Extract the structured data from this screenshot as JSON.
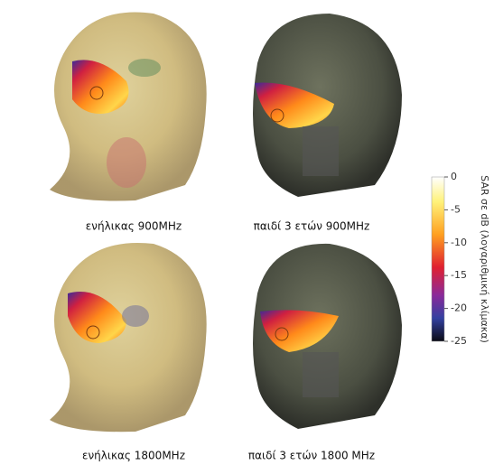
{
  "panels": [
    {
      "caption": "ενήλικας 900MHz"
    },
    {
      "caption": "παιδί 3 ετών 900MHz"
    },
    {
      "caption": "ενήλικας 1800MHz"
    },
    {
      "caption": "παιδί 3 ετών 1800 MHz"
    }
  ],
  "colorbar": {
    "label": "SAR σε dB (λογαριθμική κλίμακα)",
    "lim": [
      -25,
      0
    ],
    "ticks": [
      0,
      -5,
      -10,
      -15,
      -20,
      -25
    ]
  }
}
